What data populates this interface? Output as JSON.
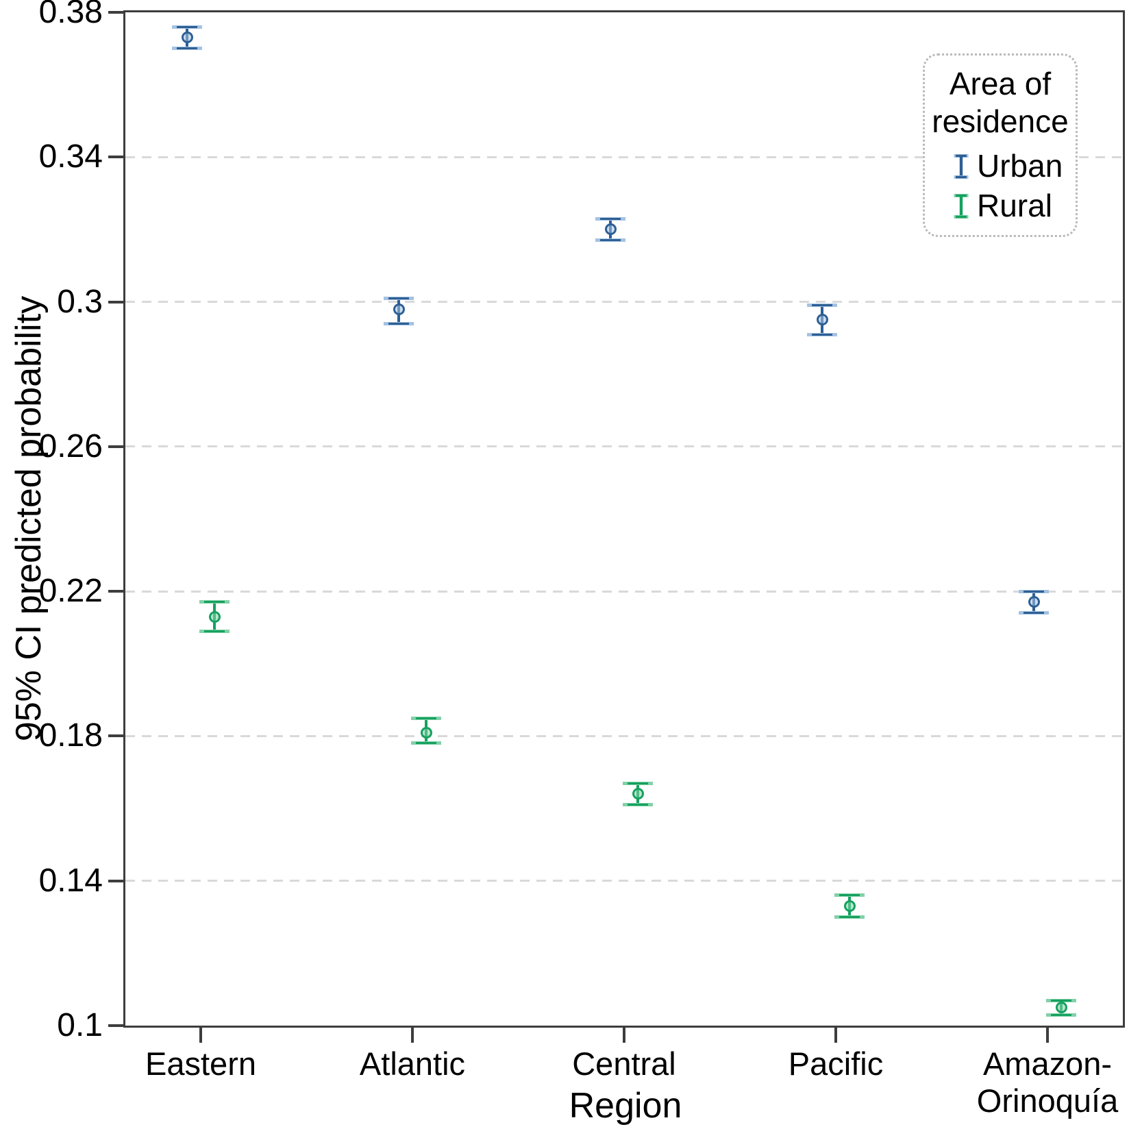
{
  "chart_data": {
    "type": "scatter",
    "title": "",
    "xlabel": "Region",
    "ylabel": "95% CI predicted probability",
    "categories": [
      "Eastern",
      "Atlantic",
      "Central",
      "Pacific",
      "Amazon-Orinoquía"
    ],
    "x_tick_labels": [
      [
        "Eastern"
      ],
      [
        "Atlantic"
      ],
      [
        "Central"
      ],
      [
        "Pacific"
      ],
      [
        "Amazon-",
        "Orinoquía"
      ]
    ],
    "ylim": [
      0.1,
      0.38
    ],
    "yticks": [
      0.1,
      0.14,
      0.18,
      0.22,
      0.26,
      0.3,
      0.34,
      0.38
    ],
    "ytick_labels": [
      "0.1",
      "0.14",
      "0.18",
      "0.22",
      "0.26",
      "0.3",
      "0.34",
      "0.38"
    ],
    "grid_values": [
      0.14,
      0.18,
      0.22,
      0.26,
      0.3,
      0.34
    ],
    "grid_style": "dashed",
    "legend": {
      "title": "Area of residence",
      "position": "top-right"
    },
    "series": [
      {
        "name": "Urban",
        "color": "#2e5f94",
        "cap_color": "#a4c2e2",
        "values": [
          {
            "category": "Eastern",
            "y": 0.373,
            "lo": 0.37,
            "hi": 0.376
          },
          {
            "category": "Atlantic",
            "y": 0.298,
            "lo": 0.294,
            "hi": 0.301
          },
          {
            "category": "Central",
            "y": 0.32,
            "lo": 0.317,
            "hi": 0.323
          },
          {
            "category": "Pacific",
            "y": 0.295,
            "lo": 0.291,
            "hi": 0.299
          },
          {
            "category": "Amazon-Orinoquía",
            "y": 0.217,
            "lo": 0.214,
            "hi": 0.22
          }
        ]
      },
      {
        "name": "Rural",
        "color": "#16a15f",
        "cap_color": "#82d1a8",
        "values": [
          {
            "category": "Eastern",
            "y": 0.213,
            "lo": 0.209,
            "hi": 0.217
          },
          {
            "category": "Atlantic",
            "y": 0.181,
            "lo": 0.178,
            "hi": 0.185
          },
          {
            "category": "Central",
            "y": 0.164,
            "lo": 0.161,
            "hi": 0.167
          },
          {
            "category": "Pacific",
            "y": 0.133,
            "lo": 0.13,
            "hi": 0.136
          },
          {
            "category": "Amazon-Orinoquía",
            "y": 0.105,
            "lo": 0.103,
            "hi": 0.107
          }
        ]
      }
    ],
    "colors": {
      "frame": "#3d3d3d",
      "grid": "#d9d9d9",
      "text": "#000000",
      "background": "#ffffff"
    }
  }
}
